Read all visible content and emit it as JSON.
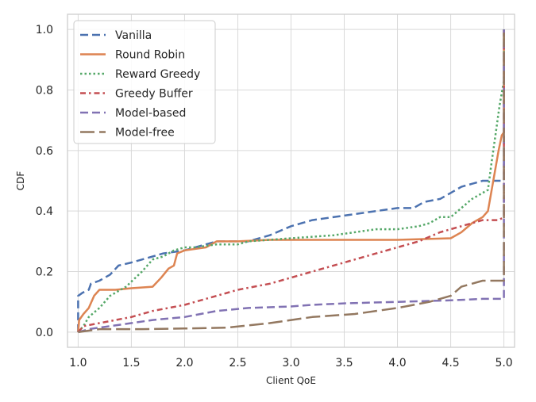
{
  "chart_data": {
    "type": "line",
    "title": "",
    "xlabel": "Client QoE",
    "ylabel": "CDF",
    "xlim": [
      0.9,
      5.1
    ],
    "ylim": [
      -0.05,
      1.05
    ],
    "xticks": [
      1.0,
      1.5,
      2.0,
      2.5,
      3.0,
      3.5,
      4.0,
      4.5,
      5.0
    ],
    "xtick_labels": [
      "1.0",
      "1.5",
      "2.0",
      "2.5",
      "3.0",
      "3.5",
      "4.0",
      "4.5",
      "5.0"
    ],
    "yticks": [
      0.0,
      0.2,
      0.4,
      0.6,
      0.8,
      1.0
    ],
    "ytick_labels": [
      "0.0",
      "0.2",
      "0.4",
      "0.6",
      "0.8",
      "1.0"
    ],
    "grid": true,
    "legend_position": "top-left",
    "series": [
      {
        "name": "Vanilla",
        "color": "#4c72b0",
        "dash": "dashed",
        "points": [
          [
            1.0,
            0.0
          ],
          [
            1.0,
            0.12
          ],
          [
            1.04,
            0.13
          ],
          [
            1.1,
            0.14
          ],
          [
            1.12,
            0.16
          ],
          [
            1.2,
            0.17
          ],
          [
            1.3,
            0.19
          ],
          [
            1.38,
            0.22
          ],
          [
            1.5,
            0.23
          ],
          [
            1.6,
            0.24
          ],
          [
            1.7,
            0.25
          ],
          [
            1.8,
            0.26
          ],
          [
            2.0,
            0.27
          ],
          [
            2.1,
            0.28
          ],
          [
            2.2,
            0.29
          ],
          [
            2.3,
            0.3
          ],
          [
            2.6,
            0.3
          ],
          [
            2.8,
            0.32
          ],
          [
            3.0,
            0.35
          ],
          [
            3.2,
            0.37
          ],
          [
            3.4,
            0.38
          ],
          [
            3.6,
            0.39
          ],
          [
            3.8,
            0.4
          ],
          [
            4.0,
            0.41
          ],
          [
            4.15,
            0.41
          ],
          [
            4.25,
            0.43
          ],
          [
            4.4,
            0.44
          ],
          [
            4.5,
            0.46
          ],
          [
            4.6,
            0.48
          ],
          [
            4.7,
            0.49
          ],
          [
            4.8,
            0.5
          ],
          [
            4.9,
            0.5
          ],
          [
            5.0,
            0.5
          ],
          [
            5.0,
            1.0
          ]
        ]
      },
      {
        "name": "Round Robin",
        "color": "#dd8452",
        "dash": "solid",
        "points": [
          [
            1.0,
            0.0
          ],
          [
            1.01,
            0.04
          ],
          [
            1.05,
            0.06
          ],
          [
            1.1,
            0.08
          ],
          [
            1.15,
            0.12
          ],
          [
            1.2,
            0.14
          ],
          [
            1.35,
            0.14
          ],
          [
            1.5,
            0.145
          ],
          [
            1.7,
            0.15
          ],
          [
            1.78,
            0.18
          ],
          [
            1.85,
            0.21
          ],
          [
            1.9,
            0.22
          ],
          [
            1.93,
            0.26
          ],
          [
            2.0,
            0.27
          ],
          [
            2.2,
            0.28
          ],
          [
            2.3,
            0.3
          ],
          [
            2.5,
            0.3
          ],
          [
            2.8,
            0.305
          ],
          [
            3.0,
            0.305
          ],
          [
            3.5,
            0.305
          ],
          [
            4.0,
            0.305
          ],
          [
            4.5,
            0.31
          ],
          [
            4.6,
            0.33
          ],
          [
            4.7,
            0.36
          ],
          [
            4.75,
            0.37
          ],
          [
            4.8,
            0.38
          ],
          [
            4.85,
            0.4
          ],
          [
            4.9,
            0.5
          ],
          [
            4.95,
            0.6
          ],
          [
            4.98,
            0.65
          ],
          [
            5.0,
            0.66
          ],
          [
            5.0,
            1.0
          ]
        ]
      },
      {
        "name": "Reward Greedy",
        "color": "#55a868",
        "dash": "dotted",
        "points": [
          [
            1.0,
            0.0
          ],
          [
            1.05,
            0.02
          ],
          [
            1.1,
            0.05
          ],
          [
            1.2,
            0.08
          ],
          [
            1.3,
            0.12
          ],
          [
            1.45,
            0.15
          ],
          [
            1.6,
            0.2
          ],
          [
            1.7,
            0.24
          ],
          [
            1.8,
            0.25
          ],
          [
            1.9,
            0.27
          ],
          [
            2.0,
            0.28
          ],
          [
            2.1,
            0.28
          ],
          [
            2.3,
            0.29
          ],
          [
            2.5,
            0.29
          ],
          [
            2.6,
            0.3
          ],
          [
            3.0,
            0.31
          ],
          [
            3.4,
            0.32
          ],
          [
            3.6,
            0.33
          ],
          [
            3.8,
            0.34
          ],
          [
            4.0,
            0.34
          ],
          [
            4.2,
            0.35
          ],
          [
            4.3,
            0.36
          ],
          [
            4.4,
            0.38
          ],
          [
            4.5,
            0.38
          ],
          [
            4.6,
            0.41
          ],
          [
            4.7,
            0.44
          ],
          [
            4.8,
            0.46
          ],
          [
            4.85,
            0.47
          ],
          [
            4.88,
            0.55
          ],
          [
            4.92,
            0.65
          ],
          [
            4.96,
            0.75
          ],
          [
            5.0,
            0.83
          ],
          [
            5.0,
            1.0
          ]
        ]
      },
      {
        "name": "Greedy Buffer",
        "color": "#c44e52",
        "dash": "dashdot",
        "points": [
          [
            1.0,
            0.0
          ],
          [
            1.05,
            0.02
          ],
          [
            1.2,
            0.03
          ],
          [
            1.5,
            0.05
          ],
          [
            1.7,
            0.07
          ],
          [
            2.0,
            0.09
          ],
          [
            2.3,
            0.12
          ],
          [
            2.5,
            0.14
          ],
          [
            2.8,
            0.16
          ],
          [
            3.0,
            0.18
          ],
          [
            3.2,
            0.2
          ],
          [
            3.5,
            0.23
          ],
          [
            3.8,
            0.26
          ],
          [
            4.0,
            0.28
          ],
          [
            4.2,
            0.3
          ],
          [
            4.4,
            0.33
          ],
          [
            4.6,
            0.35
          ],
          [
            4.8,
            0.37
          ],
          [
            4.95,
            0.37
          ],
          [
            5.0,
            0.38
          ],
          [
            5.0,
            1.0
          ]
        ]
      },
      {
        "name": "Model-based",
        "color": "#8172b3",
        "dash": "dashed",
        "points": [
          [
            1.0,
            0.0
          ],
          [
            1.1,
            0.01
          ],
          [
            1.3,
            0.02
          ],
          [
            1.5,
            0.03
          ],
          [
            1.7,
            0.04
          ],
          [
            2.0,
            0.05
          ],
          [
            2.3,
            0.07
          ],
          [
            2.6,
            0.08
          ],
          [
            3.0,
            0.085
          ],
          [
            3.2,
            0.09
          ],
          [
            3.5,
            0.095
          ],
          [
            4.0,
            0.1
          ],
          [
            4.5,
            0.105
          ],
          [
            4.8,
            0.11
          ],
          [
            5.0,
            0.11
          ],
          [
            5.0,
            1.0
          ]
        ]
      },
      {
        "name": "Model-free",
        "color": "#937860",
        "dash": "longdash",
        "points": [
          [
            1.0,
            0.0
          ],
          [
            1.1,
            0.005
          ],
          [
            1.2,
            0.01
          ],
          [
            1.6,
            0.01
          ],
          [
            2.0,
            0.012
          ],
          [
            2.4,
            0.015
          ],
          [
            2.8,
            0.03
          ],
          [
            3.2,
            0.05
          ],
          [
            3.6,
            0.06
          ],
          [
            4.0,
            0.08
          ],
          [
            4.3,
            0.1
          ],
          [
            4.5,
            0.12
          ],
          [
            4.6,
            0.15
          ],
          [
            4.7,
            0.16
          ],
          [
            4.8,
            0.17
          ],
          [
            5.0,
            0.17
          ],
          [
            5.0,
            1.0
          ]
        ]
      }
    ]
  }
}
